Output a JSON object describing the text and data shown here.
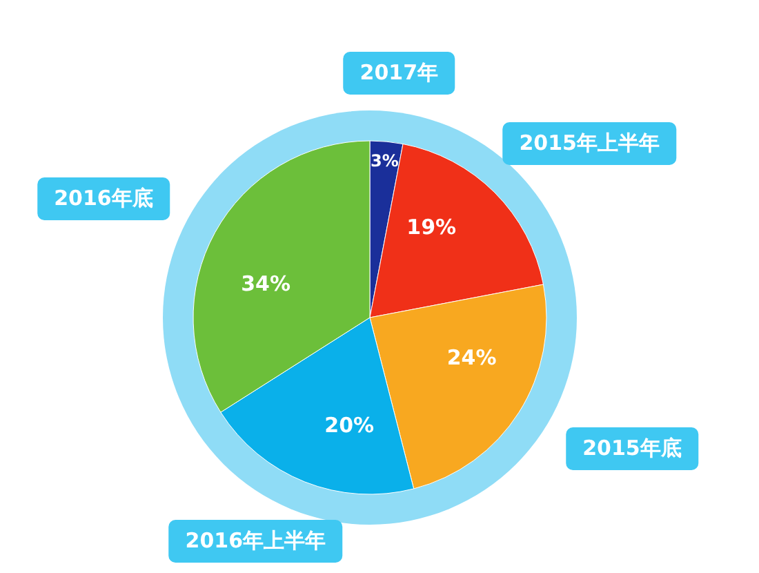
{
  "chart_data": {
    "type": "pie",
    "categories": [
      "2017年",
      "2015年上半年",
      "2015年底",
      "2016年上半年",
      "2016年底"
    ],
    "values": [
      3,
      19,
      24,
      20,
      34
    ],
    "colors": [
      "#1a2f9a",
      "#f03018",
      "#f8a820",
      "#0ab0ea",
      "#6cbf3a"
    ],
    "value_labels": [
      "3%",
      "19%",
      "24%",
      "20%",
      "34%"
    ]
  }
}
